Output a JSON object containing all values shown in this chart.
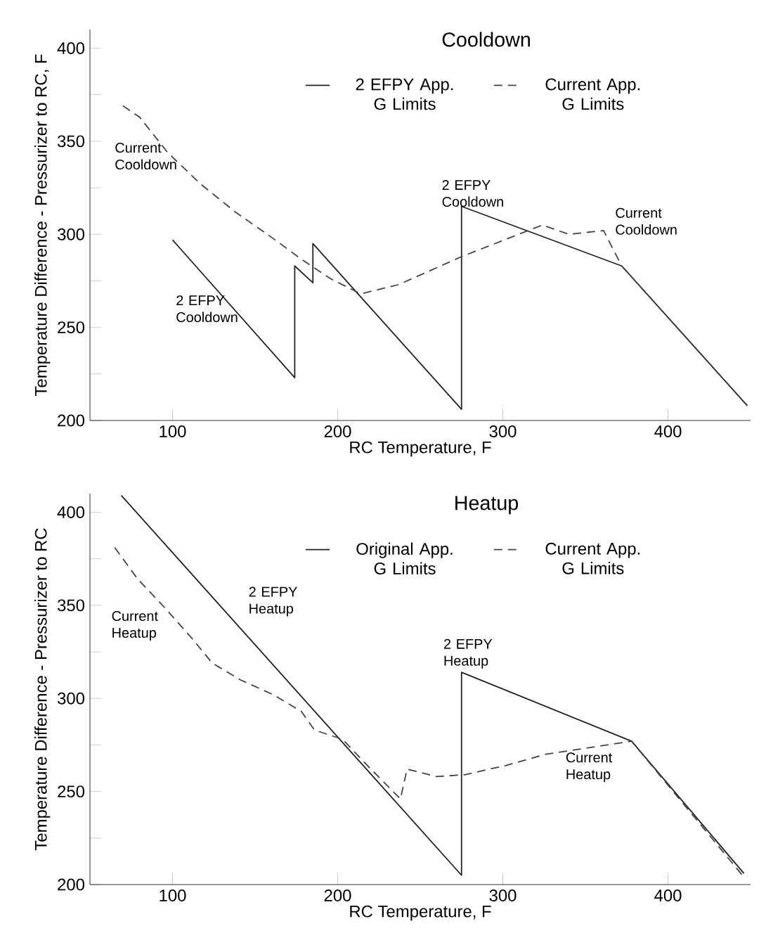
{
  "chart_data": [
    {
      "type": "line",
      "title": "Cooldown",
      "xlabel": "RC Temperature, F",
      "ylabel": "Temperature Difference - Pressurizer to RC, F",
      "xlim": [
        50,
        450
      ],
      "ylim": [
        200,
        410
      ],
      "xticks": [
        100,
        200,
        300,
        400
      ],
      "yticks": [
        200,
        {
          "value": 225,
          "label": null
        },
        250,
        {
          "value": 275,
          "label": null
        },
        300,
        {
          "value": 325,
          "label": null
        },
        350,
        {
          "value": 375,
          "label": null
        },
        400
      ],
      "legend": "top",
      "marker": "none",
      "series": [
        {
          "name": "2 EFPY App. G Limits",
          "color": "#222222",
          "line_style": "solid",
          "x": [
            100,
            174,
            174,
            185,
            185,
            275,
            275,
            372,
            448
          ],
          "values": [
            297,
            223,
            283,
            274,
            295,
            206,
            315,
            283,
            208
          ]
        },
        {
          "name": "Current App. G Limits",
          "color": "#444444",
          "line_style": "dashed",
          "x": [
            70,
            80,
            97,
            117,
            138,
            159,
            179,
            196,
            214,
            237,
            275,
            324,
            340,
            361,
            372,
            448
          ],
          "values": [
            369,
            363,
            344,
            327,
            312,
            299,
            286,
            276,
            268,
            273,
            288,
            305,
            300,
            302,
            283,
            208
          ]
        }
      ],
      "annotations": [
        "Current Cooldown",
        "2 EFPY Cooldown",
        "2 EFPY Cooldown",
        "Current Cooldown"
      ]
    },
    {
      "type": "line",
      "title": "Heatup",
      "xlabel": "RC Temperature, F",
      "ylabel": "Temperature Difference - Pressurizer to RC",
      "xlim": [
        50,
        450
      ],
      "ylim": [
        200,
        410
      ],
      "xticks": [
        100,
        200,
        300,
        400
      ],
      "yticks": [
        200,
        {
          "value": 225,
          "label": null
        },
        250,
        {
          "value": 275,
          "label": null
        },
        300,
        {
          "value": 325,
          "label": null
        },
        350,
        {
          "value": 375,
          "label": null
        },
        400
      ],
      "legend": "top",
      "marker": "none",
      "series": [
        {
          "name": "Original App. G Limits",
          "color": "#222222",
          "line_style": "solid",
          "x": [
            69,
            275,
            275,
            378,
            446
          ],
          "values": [
            409,
            205,
            314,
            277,
            206
          ]
        },
        {
          "name": "Current App. G Limits",
          "color": "#444444",
          "line_style": "dashed",
          "x": [
            65,
            79,
            95,
            112,
            124,
            141,
            161,
            178,
            186,
            203,
            219,
            238,
            242,
            260,
            277,
            302,
            326,
            378,
            446
          ],
          "values": [
            381,
            364,
            349,
            332,
            319,
            310,
            302,
            293,
            283,
            278,
            263,
            246,
            262,
            258,
            259,
            264,
            270,
            277,
            204
          ]
        }
      ],
      "annotations": [
        "2 EFPY Heatup",
        "Current Heatup",
        "2 EFPY Heatup",
        "Current Heatup"
      ]
    }
  ]
}
